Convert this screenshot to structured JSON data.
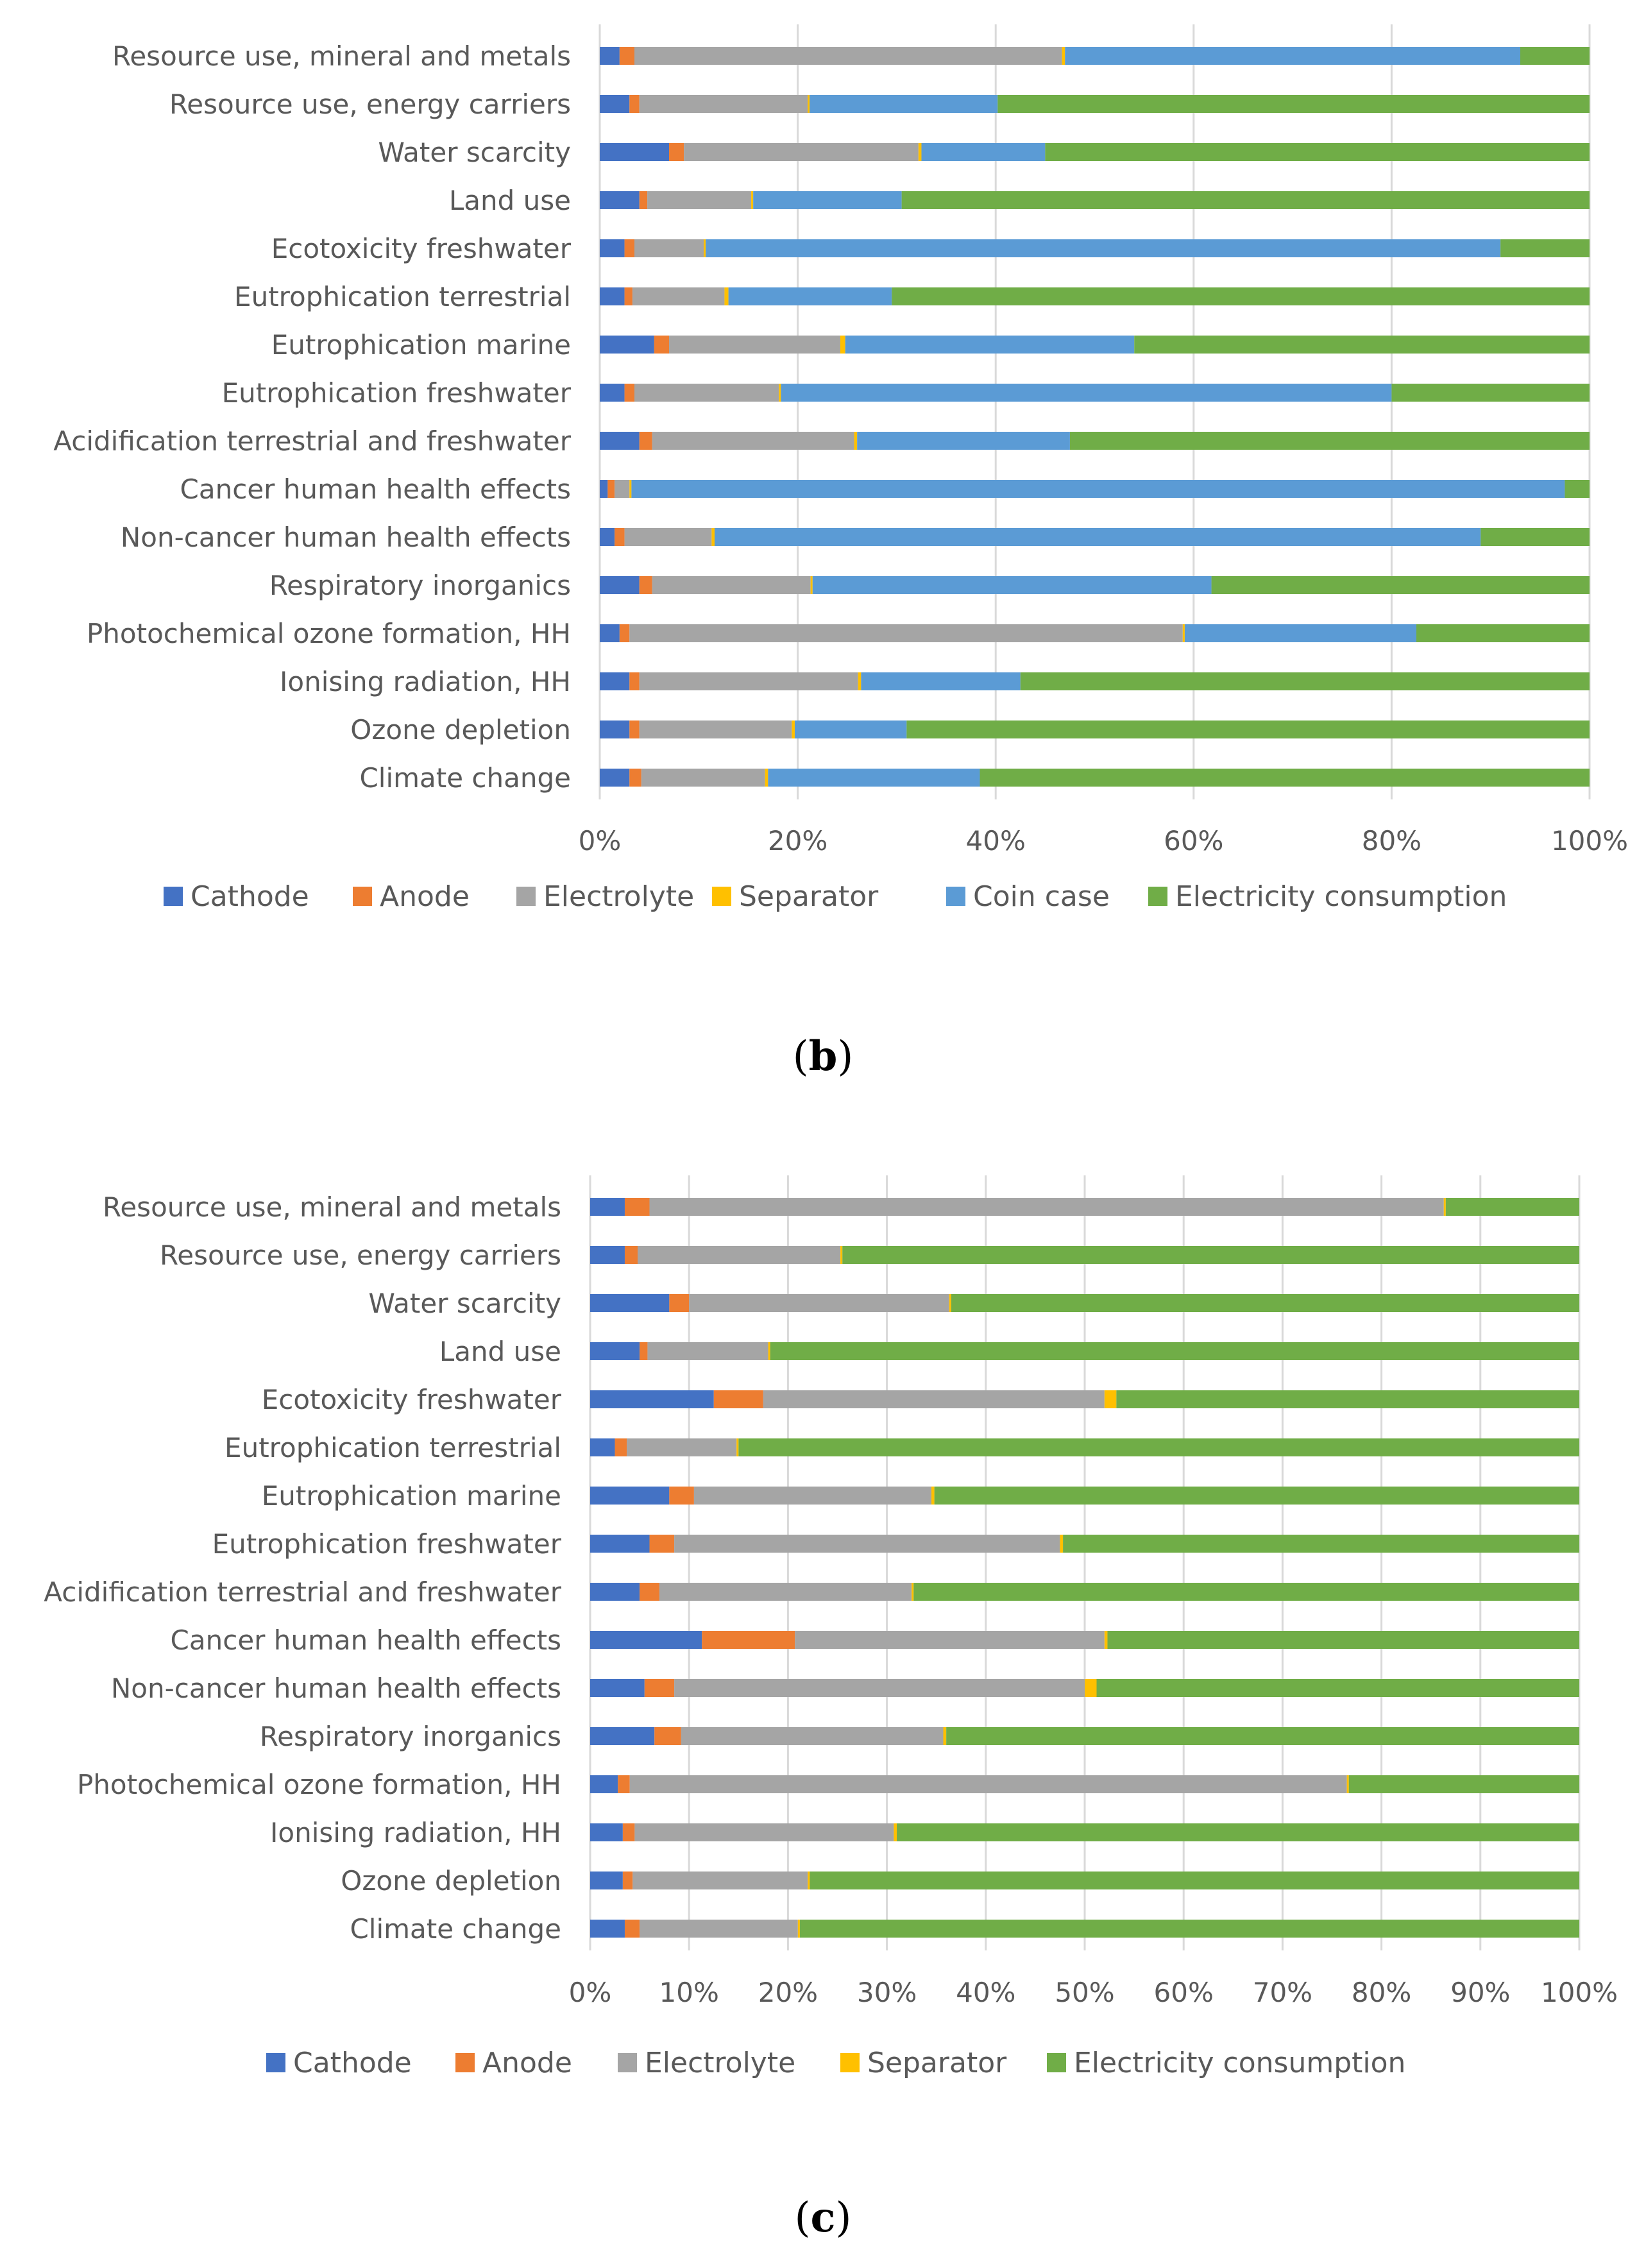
{
  "colors": {
    "Cathode": "#4472c4",
    "Anode": "#ed7d31",
    "Electrolyte": "#a5a5a5",
    "Separator": "#ffc000",
    "Coin case": "#5b9bd5",
    "Electricity consumption": "#70ad47"
  },
  "chart_data": [
    {
      "id": "b",
      "type": "bar",
      "orientation": "horizontal",
      "stacked": "percent",
      "panel_label": {
        "open": "(",
        "letter": "b",
        "close": ")"
      },
      "categories": [
        "Resource use, mineral and metals",
        "Resource use, energy carriers",
        "Water scarcity",
        "Land use",
        "Ecotoxicity freshwater",
        "Eutrophication terrestrial",
        "Eutrophication marine",
        "Eutrophication freshwater",
        "Acidification terrestrial and freshwater",
        "Cancer human health effects",
        "Non-cancer human health effects",
        "Respiratory inorganics",
        "Photochemical ozone formation, HH",
        "Ionising radiation, HH",
        "Ozone depletion",
        "Climate change"
      ],
      "series": [
        {
          "name": "Cathode",
          "values": [
            2,
            3,
            7,
            4,
            2.5,
            2.5,
            5.5,
            2.5,
            4,
            0.8,
            1.5,
            4,
            2,
            3,
            3,
            3
          ]
        },
        {
          "name": "Anode",
          "values": [
            1.5,
            1,
            1.5,
            0.8,
            1,
            0.8,
            1.5,
            1,
            1.3,
            0.7,
            1,
            1.3,
            1,
            1,
            1,
            1.2
          ]
        },
        {
          "name": "Electrolyte",
          "values": [
            43.2,
            17,
            23.7,
            10.5,
            7,
            9.3,
            17.3,
            14.6,
            20.4,
            1.5,
            8.8,
            16,
            55.9,
            22.1,
            15.4,
            12.5
          ]
        },
        {
          "name": "Separator",
          "values": [
            0.3,
            0.2,
            0.3,
            0.2,
            0.2,
            0.4,
            0.5,
            0.2,
            0.3,
            0.2,
            0.3,
            0.2,
            0.2,
            0.3,
            0.3,
            0.3
          ]
        },
        {
          "name": "Coin case",
          "values": [
            46,
            19,
            12.5,
            15,
            80.3,
            16.5,
            29.2,
            61.7,
            21.5,
            94.3,
            77.4,
            40.3,
            23.4,
            16.1,
            11.3,
            21.4
          ]
        },
        {
          "name": "Electricity consumption",
          "values": [
            7,
            59.8,
            55,
            69.5,
            9,
            70.5,
            46,
            20,
            52.5,
            2.5,
            11,
            38.2,
            17.5,
            57.5,
            69,
            61.6
          ]
        }
      ],
      "xaxis": {
        "ticks": [
          "0%",
          "20%",
          "40%",
          "60%",
          "80%",
          "100%"
        ],
        "tick_values": [
          0,
          20,
          40,
          60,
          80,
          100
        ]
      },
      "xlim": [
        0,
        100
      ],
      "legend": [
        "Cathode",
        "Anode",
        "Electrolyte",
        "Separator",
        "Coin case",
        "Electricity consumption"
      ],
      "legend_position": "bottom",
      "grid": true
    },
    {
      "id": "c",
      "type": "bar",
      "orientation": "horizontal",
      "stacked": "percent",
      "panel_label": {
        "open": "(",
        "letter": "c",
        "close": ")"
      },
      "categories": [
        "Resource use, mineral and metals",
        "Resource use, energy carriers",
        "Water scarcity",
        "Land use",
        "Ecotoxicity freshwater",
        "Eutrophication terrestrial",
        "Eutrophication marine",
        "Eutrophication freshwater",
        "Acidification terrestrial and freshwater",
        "Cancer human health effects",
        "Non-cancer human health effects",
        "Respiratory inorganics",
        "Photochemical ozone formation, HH",
        "Ionising radiation, HH",
        "Ozone depletion",
        "Climate change"
      ],
      "series": [
        {
          "name": "Cathode",
          "values": [
            3.5,
            3.5,
            8,
            5,
            12.5,
            2.5,
            8,
            6,
            5,
            11.3,
            5.5,
            6.5,
            2.8,
            3.3,
            3.3,
            3.5
          ]
        },
        {
          "name": "Anode",
          "values": [
            2.5,
            1.3,
            2,
            0.8,
            5,
            1.2,
            2.5,
            2.5,
            2,
            9.4,
            3,
            2.7,
            1.2,
            1.2,
            1,
            1.5
          ]
        },
        {
          "name": "Electrolyte",
          "values": [
            80.3,
            20.5,
            26.3,
            12.2,
            34.5,
            11.1,
            24,
            39,
            25.5,
            31.3,
            41.5,
            26.5,
            72.5,
            26.2,
            17.7,
            16
          ]
        },
        {
          "name": "Separator",
          "values": [
            0.2,
            0.2,
            0.2,
            0.2,
            1.2,
            0.2,
            0.3,
            0.3,
            0.2,
            0.3,
            1.2,
            0.3,
            0.2,
            0.3,
            0.2,
            0.2
          ]
        },
        {
          "name": "Electricity consumption",
          "values": [
            13.5,
            74.5,
            63.5,
            81.8,
            46.8,
            85,
            65.2,
            52.2,
            67.3,
            47.7,
            48.8,
            64,
            23.3,
            69,
            77.8,
            78.8
          ]
        }
      ],
      "xaxis": {
        "ticks": [
          "0%",
          "10%",
          "20%",
          "30%",
          "40%",
          "50%",
          "60%",
          "70%",
          "80%",
          "90%",
          "100%"
        ],
        "tick_values": [
          0,
          10,
          20,
          30,
          40,
          50,
          60,
          70,
          80,
          90,
          100
        ]
      },
      "xlim": [
        0,
        100
      ],
      "legend": [
        "Cathode",
        "Anode",
        "Electrolyte",
        "Separator",
        "Electricity consumption"
      ],
      "legend_position": "bottom",
      "grid": true
    }
  ]
}
